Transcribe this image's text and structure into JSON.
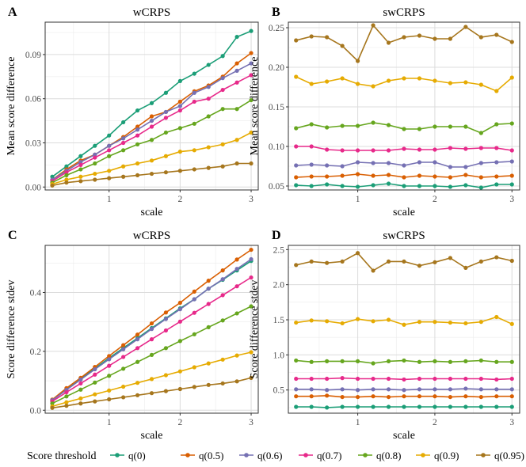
{
  "chart_data": [
    {
      "type": "line",
      "label": "A",
      "title": "wCRPS",
      "xlabel": "scale",
      "ylabel": "Mean score difference",
      "xlim": [
        0.1,
        3.1
      ],
      "ylim": [
        -0.002,
        0.112
      ],
      "xticks": [
        1,
        2,
        3
      ],
      "yticks": [
        0.0,
        0.03,
        0.06,
        0.09
      ],
      "ytick_labels": [
        "0.00",
        "0.03",
        "0.06",
        "0.09"
      ],
      "x": [
        0.2,
        0.4,
        0.6,
        0.8,
        1.0,
        1.2,
        1.4,
        1.6,
        1.8,
        2.0,
        2.2,
        2.4,
        2.6,
        2.8,
        3.0
      ],
      "series": [
        {
          "name": "q(0)",
          "values": [
            0.007,
            0.014,
            0.021,
            0.028,
            0.035,
            0.044,
            0.052,
            0.057,
            0.064,
            0.072,
            0.077,
            0.083,
            0.089,
            0.102,
            0.106
          ]
        },
        {
          "name": "q(0.5)",
          "values": [
            0.005,
            0.012,
            0.018,
            0.022,
            0.028,
            0.034,
            0.041,
            0.048,
            0.051,
            0.058,
            0.065,
            0.069,
            0.075,
            0.084,
            0.091
          ]
        },
        {
          "name": "q(0.6)",
          "values": [
            0.005,
            0.011,
            0.017,
            0.022,
            0.028,
            0.033,
            0.039,
            0.045,
            0.051,
            0.055,
            0.064,
            0.068,
            0.074,
            0.079,
            0.084
          ]
        },
        {
          "name": "q(0.7)",
          "values": [
            0.004,
            0.01,
            0.015,
            0.02,
            0.025,
            0.03,
            0.035,
            0.041,
            0.047,
            0.052,
            0.058,
            0.06,
            0.066,
            0.071,
            0.076
          ]
        },
        {
          "name": "q(0.8)",
          "values": [
            0.003,
            0.008,
            0.012,
            0.016,
            0.021,
            0.025,
            0.029,
            0.032,
            0.037,
            0.04,
            0.043,
            0.048,
            0.053,
            0.053,
            0.059
          ]
        },
        {
          "name": "q(0.9)",
          "values": [
            0.002,
            0.005,
            0.007,
            0.009,
            0.011,
            0.014,
            0.016,
            0.018,
            0.021,
            0.024,
            0.025,
            0.027,
            0.029,
            0.032,
            0.037
          ]
        },
        {
          "name": "q(0.95)",
          "values": [
            0.001,
            0.003,
            0.004,
            0.005,
            0.006,
            0.007,
            0.008,
            0.009,
            0.01,
            0.011,
            0.012,
            0.013,
            0.014,
            0.016,
            0.016
          ]
        }
      ]
    },
    {
      "type": "line",
      "label": "B",
      "title": "swCRPS",
      "xlabel": "scale",
      "ylabel": "Mean score difference",
      "xlim": [
        0.1,
        3.1
      ],
      "ylim": [
        0.045,
        0.257
      ],
      "xticks": [
        1,
        2,
        3
      ],
      "yticks": [
        0.05,
        0.1,
        0.15,
        0.2,
        0.25
      ],
      "ytick_labels": [
        "0.05",
        "0.10",
        "0.15",
        "0.20",
        "0.25"
      ],
      "x": [
        0.2,
        0.4,
        0.6,
        0.8,
        1.0,
        1.2,
        1.4,
        1.6,
        1.8,
        2.0,
        2.2,
        2.4,
        2.6,
        2.8,
        3.0
      ],
      "series": [
        {
          "name": "q(0)",
          "values": [
            0.051,
            0.05,
            0.052,
            0.05,
            0.049,
            0.051,
            0.053,
            0.05,
            0.05,
            0.05,
            0.049,
            0.051,
            0.048,
            0.052,
            0.052
          ]
        },
        {
          "name": "q(0.5)",
          "values": [
            0.061,
            0.062,
            0.062,
            0.063,
            0.065,
            0.063,
            0.064,
            0.061,
            0.063,
            0.062,
            0.061,
            0.064,
            0.061,
            0.062,
            0.063
          ]
        },
        {
          "name": "q(0.6)",
          "values": [
            0.076,
            0.077,
            0.076,
            0.075,
            0.08,
            0.079,
            0.079,
            0.076,
            0.08,
            0.08,
            0.074,
            0.074,
            0.079,
            0.08,
            0.081
          ]
        },
        {
          "name": "q(0.7)",
          "values": [
            0.1,
            0.1,
            0.096,
            0.095,
            0.095,
            0.095,
            0.095,
            0.097,
            0.096,
            0.096,
            0.098,
            0.097,
            0.098,
            0.098,
            0.095
          ]
        },
        {
          "name": "q(0.8)",
          "values": [
            0.123,
            0.128,
            0.124,
            0.126,
            0.126,
            0.13,
            0.127,
            0.122,
            0.122,
            0.125,
            0.125,
            0.125,
            0.117,
            0.128,
            0.129
          ]
        },
        {
          "name": "q(0.9)",
          "values": [
            0.188,
            0.179,
            0.182,
            0.186,
            0.179,
            0.176,
            0.183,
            0.186,
            0.186,
            0.183,
            0.18,
            0.181,
            0.178,
            0.17,
            0.187
          ]
        },
        {
          "name": "q(0.95)",
          "values": [
            0.234,
            0.239,
            0.238,
            0.227,
            0.208,
            0.253,
            0.231,
            0.238,
            0.24,
            0.236,
            0.236,
            0.251,
            0.238,
            0.241,
            0.232
          ]
        }
      ]
    },
    {
      "type": "line",
      "label": "C",
      "title": "wCRPS",
      "xlabel": "scale",
      "ylabel": "Score difference stdev",
      "xlim": [
        0.1,
        3.1
      ],
      "ylim": [
        -0.01,
        0.56
      ],
      "xticks": [
        1,
        2,
        3
      ],
      "yticks": [
        0.0,
        0.2,
        0.4
      ],
      "ytick_labels": [
        "0.0",
        "0.2",
        "0.4"
      ],
      "x": [
        0.2,
        0.4,
        0.6,
        0.8,
        1.0,
        1.2,
        1.4,
        1.6,
        1.8,
        2.0,
        2.2,
        2.4,
        2.6,
        2.8,
        3.0
      ],
      "series": [
        {
          "name": "q(0)",
          "values": [
            0.035,
            0.071,
            0.108,
            0.142,
            0.177,
            0.211,
            0.245,
            0.279,
            0.312,
            0.346,
            0.377,
            0.413,
            0.443,
            0.475,
            0.507
          ]
        },
        {
          "name": "q(0.5)",
          "values": [
            0.036,
            0.075,
            0.11,
            0.147,
            0.184,
            0.221,
            0.257,
            0.295,
            0.332,
            0.365,
            0.403,
            0.44,
            0.475,
            0.512,
            0.545
          ]
        },
        {
          "name": "q(0.6)",
          "values": [
            0.034,
            0.069,
            0.104,
            0.139,
            0.173,
            0.207,
            0.241,
            0.276,
            0.31,
            0.343,
            0.377,
            0.413,
            0.445,
            0.48,
            0.513
          ]
        },
        {
          "name": "q(0.7)",
          "values": [
            0.03,
            0.061,
            0.091,
            0.121,
            0.151,
            0.181,
            0.211,
            0.241,
            0.271,
            0.301,
            0.331,
            0.361,
            0.391,
            0.421,
            0.451
          ]
        },
        {
          "name": "q(0.8)",
          "values": [
            0.023,
            0.047,
            0.07,
            0.094,
            0.117,
            0.141,
            0.164,
            0.188,
            0.211,
            0.235,
            0.258,
            0.282,
            0.305,
            0.329,
            0.353
          ]
        },
        {
          "name": "q(0.9)",
          "values": [
            0.013,
            0.027,
            0.04,
            0.054,
            0.067,
            0.08,
            0.093,
            0.106,
            0.119,
            0.132,
            0.146,
            0.159,
            0.172,
            0.186,
            0.197
          ]
        },
        {
          "name": "q(0.95)",
          "values": [
            0.008,
            0.015,
            0.023,
            0.03,
            0.037,
            0.044,
            0.051,
            0.058,
            0.065,
            0.072,
            0.079,
            0.086,
            0.091,
            0.098,
            0.11
          ]
        }
      ]
    },
    {
      "type": "line",
      "label": "D",
      "title": "swCRPS",
      "xlabel": "scale",
      "ylabel": "Score difference stdev",
      "xlim": [
        0.1,
        3.1
      ],
      "ylim": [
        0.17,
        2.56
      ],
      "xticks": [
        1,
        2,
        3
      ],
      "yticks": [
        0.5,
        1.0,
        1.5,
        2.0,
        2.5
      ],
      "ytick_labels": [
        "0.5",
        "1.0",
        "1.5",
        "2.0",
        "2.5"
      ],
      "x": [
        0.2,
        0.4,
        0.6,
        0.8,
        1.0,
        1.2,
        1.4,
        1.6,
        1.8,
        2.0,
        2.2,
        2.4,
        2.6,
        2.8,
        3.0
      ],
      "series": [
        {
          "name": "q(0)",
          "values": [
            0.26,
            0.26,
            0.25,
            0.26,
            0.26,
            0.26,
            0.26,
            0.26,
            0.26,
            0.26,
            0.26,
            0.26,
            0.26,
            0.26,
            0.26
          ]
        },
        {
          "name": "q(0.5)",
          "values": [
            0.41,
            0.41,
            0.42,
            0.4,
            0.4,
            0.41,
            0.4,
            0.41,
            0.41,
            0.41,
            0.4,
            0.41,
            0.4,
            0.41,
            0.41
          ]
        },
        {
          "name": "q(0.6)",
          "values": [
            0.51,
            0.51,
            0.5,
            0.51,
            0.5,
            0.51,
            0.51,
            0.5,
            0.51,
            0.51,
            0.51,
            0.52,
            0.51,
            0.51,
            0.51
          ]
        },
        {
          "name": "q(0.7)",
          "values": [
            0.66,
            0.66,
            0.66,
            0.67,
            0.66,
            0.66,
            0.66,
            0.65,
            0.66,
            0.66,
            0.66,
            0.66,
            0.66,
            0.65,
            0.66
          ]
        },
        {
          "name": "q(0.8)",
          "values": [
            0.92,
            0.9,
            0.91,
            0.91,
            0.91,
            0.88,
            0.91,
            0.92,
            0.9,
            0.91,
            0.9,
            0.91,
            0.92,
            0.9,
            0.9
          ]
        },
        {
          "name": "q(0.9)",
          "values": [
            1.46,
            1.49,
            1.48,
            1.45,
            1.51,
            1.48,
            1.5,
            1.43,
            1.47,
            1.47,
            1.46,
            1.45,
            1.47,
            1.54,
            1.44
          ]
        },
        {
          "name": "q(0.95)",
          "values": [
            2.28,
            2.33,
            2.31,
            2.33,
            2.45,
            2.2,
            2.33,
            2.33,
            2.27,
            2.32,
            2.38,
            2.24,
            2.33,
            2.39,
            2.34
          ]
        }
      ]
    }
  ],
  "legend": {
    "title": "Score threshold",
    "entries": [
      {
        "name": "q(0)",
        "color": "#1B9E77"
      },
      {
        "name": "q(0.5)",
        "color": "#D95F02"
      },
      {
        "name": "q(0.6)",
        "color": "#7570B3"
      },
      {
        "name": "q(0.7)",
        "color": "#E7298A"
      },
      {
        "name": "q(0.8)",
        "color": "#66A61E"
      },
      {
        "name": "q(0.9)",
        "color": "#E6AB02"
      },
      {
        "name": "q(0.95)",
        "color": "#A6761D"
      }
    ]
  }
}
